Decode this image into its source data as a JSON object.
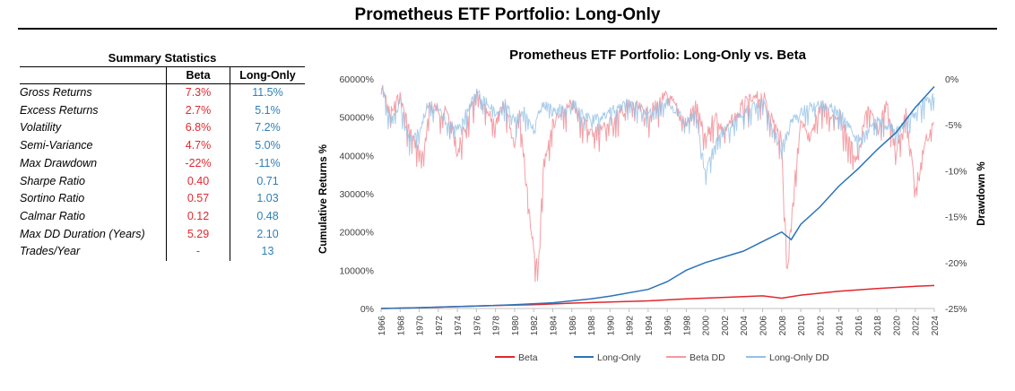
{
  "page": {
    "title": "Prometheus ETF Portfolio: Long-Only"
  },
  "stats": {
    "title": "Summary Statistics",
    "headers": [
      "Beta",
      "Long-Only"
    ],
    "rows": [
      {
        "label": "Gross Returns",
        "beta": "7.3%",
        "long_only": "11.5%"
      },
      {
        "label": "Excess Returns",
        "beta": "2.7%",
        "long_only": "5.1%"
      },
      {
        "label": "Volatility",
        "beta": "6.8%",
        "long_only": "7.2%"
      },
      {
        "label": "Semi-Variance",
        "beta": "4.7%",
        "long_only": "5.0%"
      },
      {
        "label": "Max Drawdown",
        "beta": "-22%",
        "long_only": "-11%"
      },
      {
        "label": "Sharpe Ratio",
        "beta": "0.40",
        "long_only": "0.71"
      },
      {
        "label": "Sortino Ratio",
        "beta": "0.57",
        "long_only": "1.03"
      },
      {
        "label": "Calmar Ratio",
        "beta": "0.12",
        "long_only": "0.48"
      },
      {
        "label": "Max DD Duration (Years)",
        "beta": "5.29",
        "long_only": "2.10"
      },
      {
        "label": "Trades/Year",
        "beta": "-",
        "long_only": "13"
      }
    ]
  },
  "chart_data": {
    "type": "line",
    "title": "Prometheus ETF Portfolio: Long-Only vs. Beta",
    "ylabel": "Cumulative Returns %",
    "y2label": "Drawdown %",
    "ylim": [
      0,
      60000
    ],
    "y2lim": [
      -25,
      0
    ],
    "xlim": [
      1966,
      2024
    ],
    "yticks": [
      "0%",
      "10000%",
      "20000%",
      "30000%",
      "40000%",
      "50000%",
      "60000%"
    ],
    "y2ticks": [
      "0%",
      "-5%",
      "-10%",
      "-15%",
      "-20%",
      "-25%"
    ],
    "xticks": [
      "1966",
      "1968",
      "1970",
      "1972",
      "1974",
      "1976",
      "1978",
      "1980",
      "1982",
      "1984",
      "1986",
      "1988",
      "1990",
      "1992",
      "1994",
      "1996",
      "1998",
      "2000",
      "2002",
      "2004",
      "2006",
      "2008",
      "2010",
      "2012",
      "2014",
      "2016",
      "2018",
      "2020",
      "2022",
      "2024"
    ],
    "legend_position": "bottom",
    "grid": false,
    "colors": {
      "beta": "#e0282e",
      "long_only": "#2b73b8",
      "beta_dd": "#f39aa0",
      "long_only_dd": "#94c0e6"
    },
    "series": [
      {
        "name": "Beta",
        "axis": "left",
        "x": [
          1966,
          1970,
          1974,
          1978,
          1982,
          1986,
          1990,
          1994,
          1998,
          2002,
          2006,
          2008,
          2010,
          2014,
          2018,
          2022,
          2024
        ],
        "values": [
          0,
          200,
          500,
          800,
          1000,
          1400,
          1700,
          2000,
          2500,
          2900,
          3300,
          2700,
          3500,
          4500,
          5200,
          5800,
          6000
        ]
      },
      {
        "name": "Long-Only",
        "axis": "left",
        "x": [
          1966,
          1970,
          1974,
          1978,
          1980,
          1984,
          1988,
          1990,
          1994,
          1996,
          1998,
          2000,
          2002,
          2004,
          2006,
          2008,
          2009,
          2010,
          2012,
          2014,
          2016,
          2018,
          2020,
          2022,
          2024
        ],
        "values": [
          0,
          200,
          500,
          800,
          1000,
          1500,
          2500,
          3200,
          5000,
          7000,
          10000,
          12000,
          13500,
          15000,
          17500,
          20000,
          18000,
          22000,
          26500,
          32000,
          36500,
          41500,
          46000,
          52500,
          58000
        ]
      },
      {
        "name": "Beta DD",
        "axis": "right",
        "x": [
          1966,
          1967,
          1968,
          1969,
          1970,
          1970.5,
          1971,
          1973,
          1974,
          1975,
          1976,
          1977,
          1978,
          1979,
          1980,
          1980.5,
          1981,
          1981.5,
          1982,
          1982.5,
          1983,
          1984,
          1986,
          1988,
          1990,
          1992,
          1994,
          1996,
          1998,
          1999,
          2000,
          2001,
          2002,
          2004,
          2006,
          2008,
          2008.3,
          2008.6,
          2009,
          2010,
          2011,
          2012,
          2013,
          2014,
          2015,
          2016,
          2017,
          2018,
          2019,
          2020,
          2021,
          2022,
          2022.5,
          2023,
          2024
        ],
        "values": [
          0,
          -3,
          -1,
          -5,
          -7,
          -8,
          -2,
          -3,
          -7,
          -4,
          -1,
          -3,
          -4,
          -2,
          -6,
          -2,
          -8,
          -13,
          -18,
          -20,
          -9,
          -4,
          -2,
          -5,
          -4,
          -2,
          -3,
          -1,
          -4,
          -2,
          -6,
          -3,
          -5,
          -2,
          -1,
          -6,
          -14,
          -20,
          -14,
          -4,
          -6,
          -2,
          -3,
          -3,
          -6,
          -8,
          -2,
          -5,
          -2,
          -7,
          -3,
          -11,
          -9,
          -6,
          -4
        ]
      },
      {
        "name": "Long-Only DD",
        "axis": "right",
        "x": [
          1966,
          1967,
          1968,
          1969,
          1970,
          1971,
          1972,
          1973,
          1974,
          1975,
          1976,
          1977,
          1978,
          1979,
          1980,
          1981,
          1982,
          1983,
          1984,
          1986,
          1988,
          1990,
          1992,
          1994,
          1996,
          1998,
          1999,
          2000,
          2001,
          2002,
          2004,
          2006,
          2008,
          2009,
          2010,
          2012,
          2014,
          2016,
          2018,
          2020,
          2022,
          2024
        ],
        "values": [
          0,
          -4,
          -2,
          -6,
          -5,
          -2,
          -3,
          -4,
          -5,
          -3,
          -1,
          -2,
          -3,
          -2,
          -4,
          -3,
          -5,
          -2,
          -3,
          -2,
          -4,
          -3,
          -2,
          -3,
          -2,
          -4,
          -3,
          -10,
          -6,
          -5,
          -3,
          -2,
          -7,
          -4,
          -3,
          -2,
          -3,
          -6,
          -4,
          -5,
          -3,
          -1
        ]
      }
    ]
  }
}
